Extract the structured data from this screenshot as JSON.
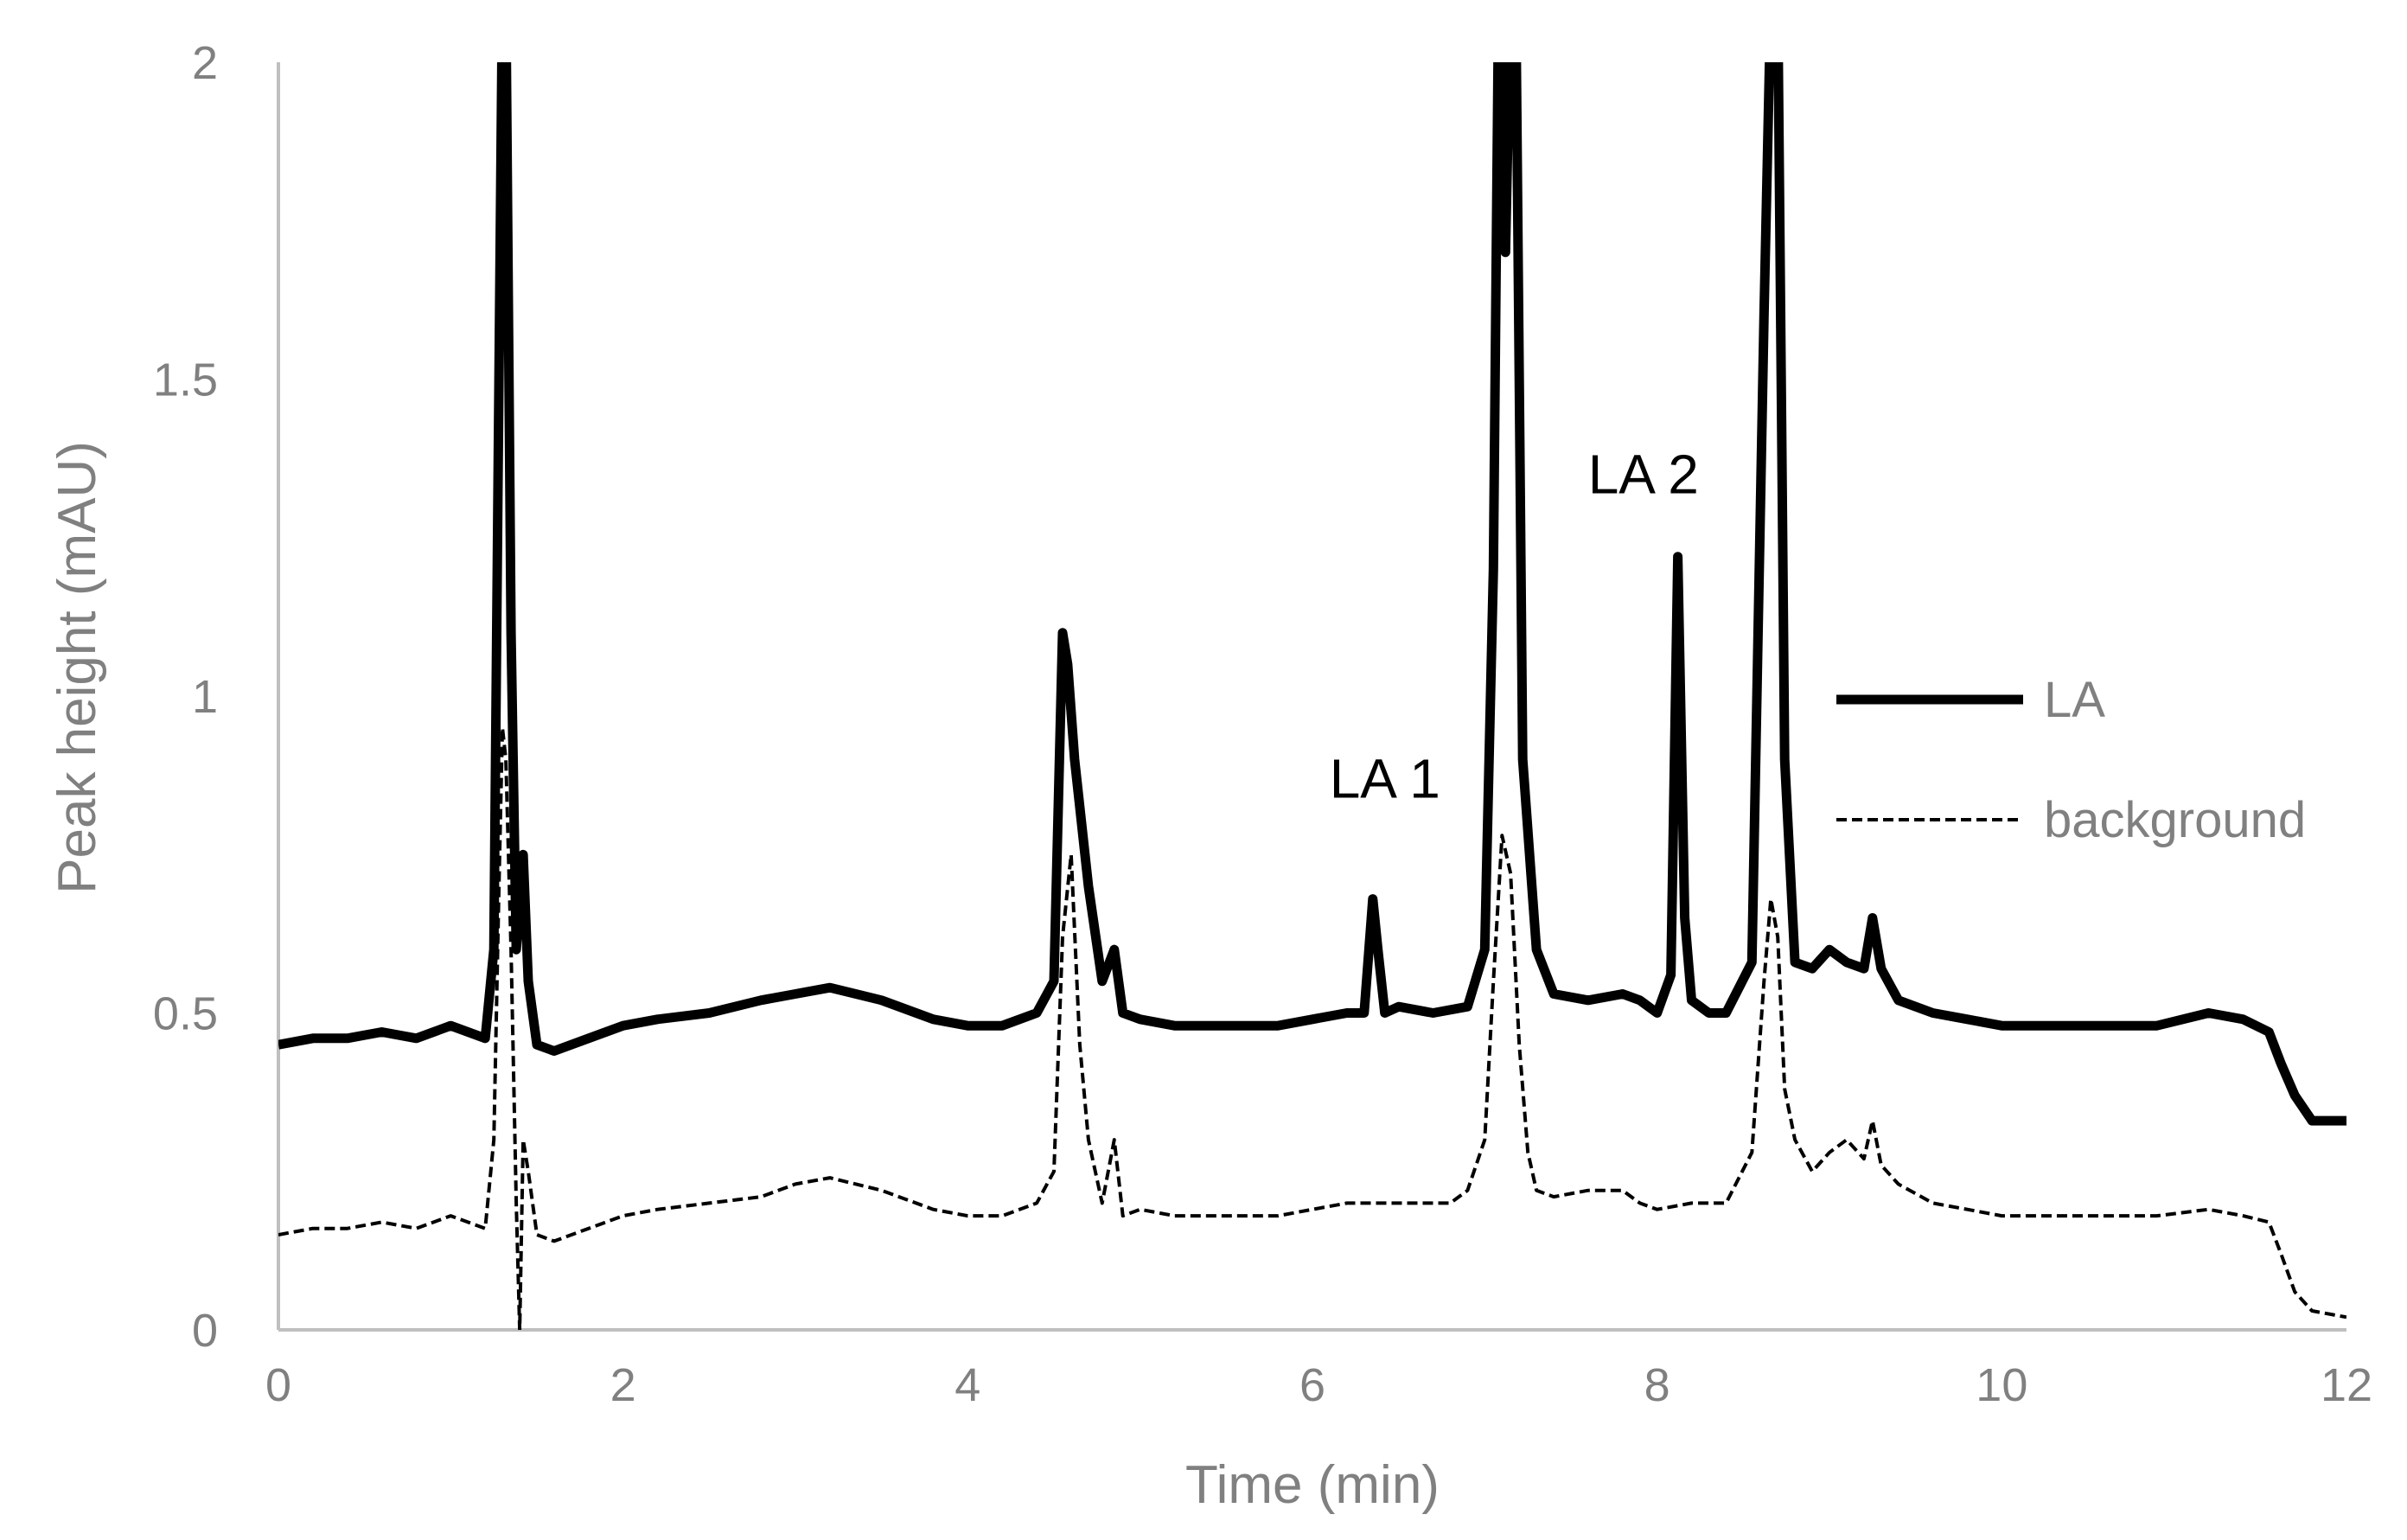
{
  "chart_data": {
    "type": "line",
    "title": "",
    "xlabel": "Time (min)",
    "ylabel": "Peak height  (mAU)",
    "xlim": [
      0,
      12
    ],
    "ylim": [
      0,
      2
    ],
    "xticks": [
      0,
      2,
      4,
      6,
      8,
      10,
      12
    ],
    "yticks": [
      0,
      0.5,
      1,
      1.5,
      2
    ],
    "xtick_labels": [
      "0",
      "2",
      "4",
      "6",
      "8",
      "10",
      "12"
    ],
    "ytick_labels": [
      "0",
      "0.5",
      "1",
      "1.5",
      "2"
    ],
    "grid": false,
    "legend": {
      "position": "right",
      "entries": [
        "LA",
        "background"
      ]
    },
    "annotations": [
      {
        "text": "LA 1",
        "x": 6.45,
        "y": 0.87
      },
      {
        "text": "LA 2",
        "x": 7.95,
        "y": 1.35
      }
    ],
    "series": [
      {
        "name": "LA",
        "style": "solid-thick",
        "color": "#000000",
        "x": [
          0,
          0.2,
          0.4,
          0.6,
          0.8,
          1.0,
          1.2,
          1.25,
          1.28,
          1.3,
          1.32,
          1.35,
          1.38,
          1.42,
          1.45,
          1.5,
          1.6,
          1.8,
          2.0,
          2.2,
          2.5,
          2.8,
          3.0,
          3.2,
          3.5,
          3.8,
          4.0,
          4.2,
          4.4,
          4.5,
          4.55,
          4.58,
          4.62,
          4.7,
          4.78,
          4.85,
          4.9,
          5.0,
          5.2,
          5.5,
          5.8,
          6.0,
          6.2,
          6.3,
          6.35,
          6.38,
          6.42,
          6.5,
          6.7,
          6.9,
          7.0,
          7.05,
          7.08,
          7.1,
          7.12,
          7.15,
          7.18,
          7.22,
          7.3,
          7.4,
          7.6,
          7.8,
          7.9,
          8.0,
          8.08,
          8.12,
          8.16,
          8.2,
          8.3,
          8.4,
          8.55,
          8.62,
          8.66,
          8.7,
          8.74,
          8.8,
          8.9,
          9.0,
          9.1,
          9.2,
          9.25,
          9.3,
          9.4,
          9.6,
          9.8,
          10.0,
          10.3,
          10.6,
          10.9,
          11.2,
          11.4,
          11.55,
          11.62,
          11.7,
          11.8,
          12.0
        ],
        "values": [
          0.45,
          0.46,
          0.46,
          0.47,
          0.46,
          0.48,
          0.46,
          0.6,
          1.5,
          2.1,
          2.1,
          1.1,
          0.6,
          0.75,
          0.55,
          0.45,
          0.44,
          0.46,
          0.48,
          0.49,
          0.5,
          0.52,
          0.53,
          0.54,
          0.52,
          0.49,
          0.48,
          0.48,
          0.5,
          0.55,
          1.1,
          1.05,
          0.9,
          0.7,
          0.55,
          0.6,
          0.5,
          0.49,
          0.48,
          0.48,
          0.48,
          0.49,
          0.5,
          0.5,
          0.68,
          0.6,
          0.5,
          0.51,
          0.5,
          0.51,
          0.6,
          1.2,
          2.1,
          2.1,
          1.7,
          2.1,
          2.1,
          0.9,
          0.6,
          0.53,
          0.52,
          0.53,
          0.52,
          0.5,
          0.56,
          1.22,
          0.65,
          0.52,
          0.5,
          0.5,
          0.58,
          1.6,
          2.1,
          2.1,
          0.9,
          0.58,
          0.57,
          0.6,
          0.58,
          0.57,
          0.65,
          0.57,
          0.52,
          0.5,
          0.49,
          0.48,
          0.48,
          0.48,
          0.48,
          0.5,
          0.49,
          0.47,
          0.42,
          0.37,
          0.33,
          0.33
        ]
      },
      {
        "name": "background",
        "style": "dashed",
        "color": "#000000",
        "x": [
          0,
          0.2,
          0.4,
          0.6,
          0.8,
          1.0,
          1.2,
          1.25,
          1.28,
          1.3,
          1.32,
          1.35,
          1.38,
          1.4,
          1.42,
          1.45,
          1.5,
          1.6,
          1.8,
          2.0,
          2.2,
          2.5,
          2.8,
          3.0,
          3.2,
          3.5,
          3.8,
          4.0,
          4.2,
          4.4,
          4.5,
          4.55,
          4.6,
          4.65,
          4.7,
          4.78,
          4.85,
          4.9,
          5.0,
          5.2,
          5.5,
          5.8,
          6.0,
          6.2,
          6.4,
          6.6,
          6.8,
          6.9,
          7.0,
          7.05,
          7.1,
          7.15,
          7.2,
          7.25,
          7.3,
          7.4,
          7.6,
          7.8,
          7.9,
          8.0,
          8.2,
          8.4,
          8.55,
          8.62,
          8.66,
          8.7,
          8.74,
          8.8,
          8.9,
          9.0,
          9.1,
          9.2,
          9.25,
          9.3,
          9.4,
          9.6,
          9.8,
          10.0,
          10.3,
          10.6,
          10.9,
          11.2,
          11.4,
          11.55,
          11.62,
          11.7,
          11.8,
          12.0
        ],
        "values": [
          0.15,
          0.16,
          0.16,
          0.17,
          0.16,
          0.18,
          0.16,
          0.3,
          0.7,
          0.95,
          0.9,
          0.6,
          0.2,
          0.0,
          0.3,
          0.25,
          0.15,
          0.14,
          0.16,
          0.18,
          0.19,
          0.2,
          0.21,
          0.23,
          0.24,
          0.22,
          0.19,
          0.18,
          0.18,
          0.2,
          0.25,
          0.62,
          0.75,
          0.45,
          0.3,
          0.2,
          0.3,
          0.18,
          0.19,
          0.18,
          0.18,
          0.18,
          0.19,
          0.2,
          0.2,
          0.2,
          0.2,
          0.22,
          0.3,
          0.55,
          0.78,
          0.72,
          0.45,
          0.28,
          0.22,
          0.21,
          0.22,
          0.22,
          0.2,
          0.19,
          0.2,
          0.2,
          0.28,
          0.55,
          0.68,
          0.62,
          0.38,
          0.3,
          0.25,
          0.28,
          0.3,
          0.27,
          0.33,
          0.26,
          0.23,
          0.2,
          0.19,
          0.18,
          0.18,
          0.18,
          0.18,
          0.19,
          0.18,
          0.17,
          0.12,
          0.06,
          0.03,
          0.02
        ]
      }
    ]
  }
}
